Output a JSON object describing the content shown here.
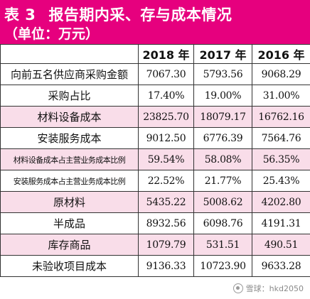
{
  "title": {
    "number": "表 3",
    "text": "报告期内采、存与成本情况",
    "unit": "（单位：万元）"
  },
  "table": {
    "headers": [
      "",
      "2018 年",
      "2017 年",
      "2016 年"
    ],
    "rows": [
      {
        "label": "向前五名供应商采购金额",
        "values": [
          "7067.30",
          "5793.56",
          "9068.29"
        ]
      },
      {
        "label": "采购占比",
        "values": [
          "17.40%",
          "19.00%",
          "31.00%"
        ]
      },
      {
        "label": "材料设备成本",
        "values": [
          "23825.70",
          "18079.17",
          "16762.16"
        ]
      },
      {
        "label": "安装服务成本",
        "values": [
          "9012.50",
          "6776.39",
          "7564.76"
        ]
      },
      {
        "label": "材料设备成本占主营业务成本比例",
        "values": [
          "59.54%",
          "58.08%",
          "56.35%"
        ]
      },
      {
        "label": "安装服务成本占主营业务成本比例",
        "values": [
          "22.52%",
          "21.77%",
          "25.43%"
        ]
      },
      {
        "label": "原材料",
        "values": [
          "5435.22",
          "5008.62",
          "4202.80"
        ]
      },
      {
        "label": "半成品",
        "values": [
          "8932.56",
          "6098.76",
          "4191.31"
        ]
      },
      {
        "label": "库存商品",
        "values": [
          "1079.79",
          "531.51",
          "490.51"
        ]
      },
      {
        "label": "未验收项目成本",
        "values": [
          "9136.33",
          "10723.90",
          "9633.28"
        ]
      }
    ]
  },
  "watermark": {
    "text": "雪球：hkd2050",
    "icon": "snowball-logo-icon"
  },
  "colors": {
    "title_background": "#e6007e",
    "row_highlight": "#f9dde9"
  }
}
